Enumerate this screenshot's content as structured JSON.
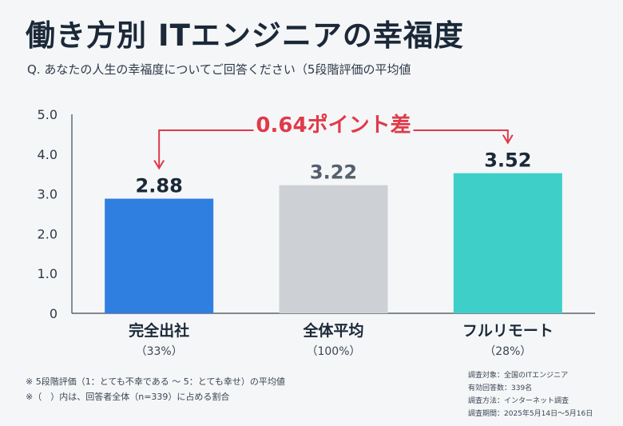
{
  "header": {
    "title": "働き方別 ITエンジニアの幸福度",
    "subtitle": "Q. あなたの人生の幸福度についてご回答ください（5段階評価の平均値"
  },
  "chart_data": {
    "type": "bar",
    "categories": [
      "完全出社",
      "全体平均",
      "フルリモート"
    ],
    "category_sublabels": [
      "（33%）",
      "（100%）",
      "（28%）"
    ],
    "values": [
      2.88,
      3.22,
      3.52
    ],
    "value_labels": [
      "2.88",
      "3.22",
      "3.52"
    ],
    "colors": [
      "#2f7fe0",
      "#cdd1d6",
      "#3ecfc9"
    ],
    "ylim": [
      0,
      5
    ],
    "yticks": [
      "0",
      "1.0",
      "2.0",
      "3.0",
      "4.0",
      "5.0"
    ],
    "grid": false,
    "annotation": {
      "label": "0.64ポイント差",
      "from": "完全出社",
      "to": "フルリモート",
      "color": "#e03a4a"
    }
  },
  "notes": [
    "※ 5段階評価（1：とても不幸である 〜 5：とても幸せ）の平均値",
    "※（　）内は、回答者全体（n=339）に占める割合"
  ],
  "survey_info": [
    "調査対象：全国のITエンジニア",
    "有効回答数：339名",
    "調査方法：インターネット調査",
    "調査期間：2025年5月14日〜5月16日"
  ]
}
